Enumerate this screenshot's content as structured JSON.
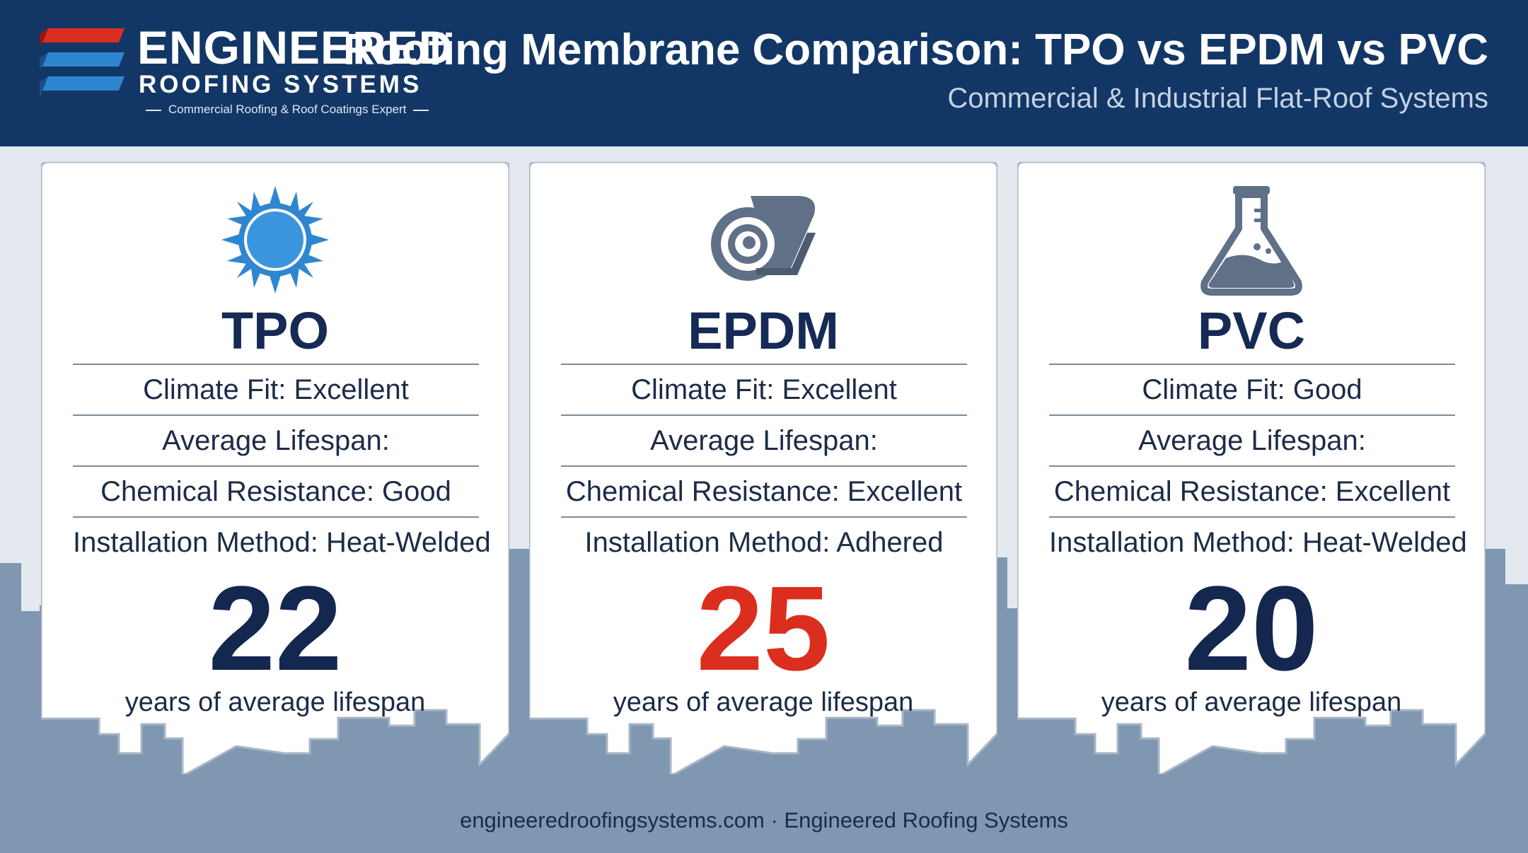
{
  "header": {
    "brand_name_line1": "ENGINEERED",
    "brand_name_line2": "ROOFING SYSTEMS",
    "brand_tagline": "Commercial Roofing & Roof Coatings Expert",
    "title": "Roofing Membrane Comparison: TPO vs EPDM vs PVC",
    "subtitle": "Commercial & Industrial Flat-Roof Systems"
  },
  "cards": [
    {
      "icon": "sun-icon",
      "name": "TPO",
      "rows": [
        "Climate Fit: Excellent",
        "Average Lifespan:",
        "Chemical Resistance: Good",
        "Installation Method: Heat-Welded"
      ],
      "lifespan_value": "22",
      "lifespan_unit": "years of average lifespan",
      "value_color": "#13274f"
    },
    {
      "icon": "membrane-roll-icon",
      "name": "EPDM",
      "rows": [
        "Climate Fit: Excellent",
        "Average Lifespan:",
        "Chemical Resistance: Excellent",
        "Installation Method: Adhered"
      ],
      "lifespan_value": "25",
      "lifespan_unit": "years of average lifespan",
      "value_color": "#dc2e1e"
    },
    {
      "icon": "flask-icon",
      "name": "PVC",
      "rows": [
        "Climate Fit: Good",
        "Average Lifespan:",
        "Chemical Resistance: Excellent",
        "Installation Method: Heat-Welded"
      ],
      "lifespan_value": "20",
      "lifespan_unit": "years of average lifespan",
      "value_color": "#13274f"
    }
  ],
  "footer": {
    "text": "engineeredroofingsystems.com · Engineered Roofing Systems"
  },
  "colors": {
    "header_bg": "#123766",
    "accent_red": "#dc2e1e",
    "accent_blue": "#2f86d0",
    "skyline": "#7f97b1",
    "page_bg": "#e3e9ef"
  }
}
